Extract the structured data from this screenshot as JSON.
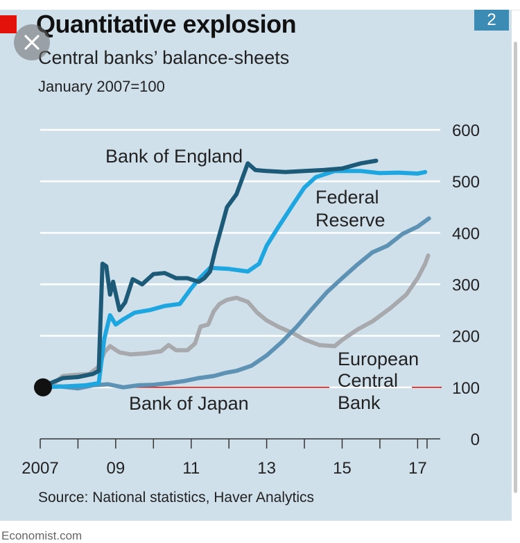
{
  "chart_number": "2",
  "footer": "Economist.com",
  "icons": {
    "close": "close-icon"
  },
  "colors": {
    "background": "#cfe0eb",
    "bank_of_england": "#1c5a78",
    "federal_reserve": "#1ea6e0",
    "european_central_bank": "#5d92b4",
    "bank_of_japan": "#a7a9ac",
    "baseline": "#e3120b",
    "gridline": "#ffffff",
    "brand_red": "#e3120b"
  },
  "chart_data": {
    "type": "line",
    "title": "Quantitative explosion",
    "subtitle": "Central banks’ balance-sheets",
    "unit_label": "January 2007=100",
    "source": "Source: National statistics, Haver Analytics",
    "xlim": [
      2007,
      2017.6
    ],
    "ylim": [
      0,
      600
    ],
    "y_ticks": [
      0,
      100,
      200,
      300,
      400,
      500,
      600
    ],
    "y_tick_labels": [
      "0",
      "100",
      "200",
      "300",
      "400",
      "500",
      "600"
    ],
    "x_tick_labels": [
      {
        "x": 2007,
        "label": "2007"
      },
      {
        "x": 2009,
        "label": "09"
      },
      {
        "x": 2011,
        "label": "11"
      },
      {
        "x": 2013,
        "label": "13"
      },
      {
        "x": 2015,
        "label": "15"
      },
      {
        "x": 2017,
        "label": "17"
      }
    ],
    "x_minor_ticks": [
      2007,
      2008,
      2009,
      2010,
      2011,
      2012,
      2013,
      2014,
      2015,
      2016,
      2017,
      2017.25
    ],
    "gridlines": true,
    "start_marker": {
      "x": 2007.0,
      "y": 100
    },
    "series": [
      {
        "name": "Bank of Japan",
        "color": "#a7a9ac",
        "points": [
          [
            2007.0,
            100
          ],
          [
            2007.4,
            110
          ],
          [
            2007.6,
            122
          ],
          [
            2007.9,
            124
          ],
          [
            2008.3,
            126
          ],
          [
            2008.55,
            140
          ],
          [
            2008.7,
            168
          ],
          [
            2008.85,
            180
          ],
          [
            2009.1,
            168
          ],
          [
            2009.4,
            164
          ],
          [
            2009.8,
            166
          ],
          [
            2010.2,
            170
          ],
          [
            2010.4,
            182
          ],
          [
            2010.6,
            172
          ],
          [
            2010.9,
            172
          ],
          [
            2011.1,
            185
          ],
          [
            2011.25,
            218
          ],
          [
            2011.45,
            222
          ],
          [
            2011.6,
            248
          ],
          [
            2011.75,
            262
          ],
          [
            2011.95,
            270
          ],
          [
            2012.2,
            274
          ],
          [
            2012.5,
            266
          ],
          [
            2012.75,
            245
          ],
          [
            2013.0,
            230
          ],
          [
            2013.3,
            218
          ],
          [
            2013.7,
            205
          ],
          [
            2014.0,
            193
          ],
          [
            2014.4,
            182
          ],
          [
            2014.8,
            180
          ],
          [
            2015.0,
            192
          ],
          [
            2015.4,
            212
          ],
          [
            2015.8,
            228
          ],
          [
            2016.3,
            255
          ],
          [
            2016.7,
            280
          ],
          [
            2017.0,
            312
          ],
          [
            2017.2,
            340
          ],
          [
            2017.28,
            356
          ]
        ]
      },
      {
        "name": "Bank of England",
        "color": "#1c5a78",
        "labels": [
          "Bank of England"
        ],
        "points": [
          [
            2007.0,
            100
          ],
          [
            2007.6,
            118
          ],
          [
            2008.0,
            120
          ],
          [
            2008.4,
            126
          ],
          [
            2008.55,
            132
          ],
          [
            2008.65,
            340
          ],
          [
            2008.75,
            335
          ],
          [
            2008.85,
            280
          ],
          [
            2008.93,
            305
          ],
          [
            2009.1,
            250
          ],
          [
            2009.25,
            265
          ],
          [
            2009.45,
            310
          ],
          [
            2009.7,
            300
          ],
          [
            2010.0,
            320
          ],
          [
            2010.3,
            322
          ],
          [
            2010.6,
            312
          ],
          [
            2010.9,
            312
          ],
          [
            2011.2,
            305
          ],
          [
            2011.35,
            312
          ],
          [
            2011.5,
            325
          ],
          [
            2011.65,
            370
          ],
          [
            2011.8,
            410
          ],
          [
            2011.95,
            450
          ],
          [
            2012.2,
            475
          ],
          [
            2012.35,
            505
          ],
          [
            2012.5,
            535
          ],
          [
            2012.7,
            522
          ],
          [
            2013.0,
            520
          ],
          [
            2013.5,
            518
          ],
          [
            2014.0,
            520
          ],
          [
            2014.5,
            522
          ],
          [
            2015.0,
            525
          ],
          [
            2015.5,
            535
          ],
          [
            2015.9,
            540
          ]
        ]
      },
      {
        "name": "Federal Reserve",
        "color": "#1ea6e0",
        "labels": [
          "Federal",
          "Reserve"
        ],
        "points": [
          [
            2007.0,
            100
          ],
          [
            2007.7,
            102
          ],
          [
            2008.2,
            104
          ],
          [
            2008.55,
            108
          ],
          [
            2008.7,
            195
          ],
          [
            2008.85,
            240
          ],
          [
            2009.0,
            222
          ],
          [
            2009.2,
            232
          ],
          [
            2009.5,
            245
          ],
          [
            2009.9,
            250
          ],
          [
            2010.3,
            258
          ],
          [
            2010.7,
            262
          ],
          [
            2011.0,
            292
          ],
          [
            2011.2,
            310
          ],
          [
            2011.5,
            332
          ],
          [
            2012.0,
            330
          ],
          [
            2012.5,
            325
          ],
          [
            2012.8,
            340
          ],
          [
            2013.0,
            375
          ],
          [
            2013.3,
            410
          ],
          [
            2013.7,
            455
          ],
          [
            2014.0,
            488
          ],
          [
            2014.3,
            508
          ],
          [
            2014.8,
            520
          ],
          [
            2015.5,
            520
          ],
          [
            2016.0,
            516
          ],
          [
            2016.5,
            517
          ],
          [
            2017.0,
            515
          ],
          [
            2017.2,
            518
          ]
        ]
      },
      {
        "name": "European Central Bank",
        "color": "#5d92b4",
        "labels": [
          "European",
          "Central",
          "Bank"
        ],
        "points": [
          [
            2007.0,
            100
          ],
          [
            2007.5,
            102
          ],
          [
            2008.0,
            98
          ],
          [
            2008.4,
            104
          ],
          [
            2008.8,
            106
          ],
          [
            2009.2,
            100
          ],
          [
            2009.6,
            104
          ],
          [
            2010.0,
            105
          ],
          [
            2010.4,
            108
          ],
          [
            2010.8,
            112
          ],
          [
            2011.2,
            118
          ],
          [
            2011.6,
            122
          ],
          [
            2011.9,
            128
          ],
          [
            2012.2,
            132
          ],
          [
            2012.6,
            142
          ],
          [
            2013.0,
            162
          ],
          [
            2013.4,
            188
          ],
          [
            2013.8,
            218
          ],
          [
            2014.2,
            252
          ],
          [
            2014.6,
            285
          ],
          [
            2015.0,
            312
          ],
          [
            2015.4,
            338
          ],
          [
            2015.8,
            362
          ],
          [
            2016.2,
            375
          ],
          [
            2016.6,
            398
          ],
          [
            2017.0,
            412
          ],
          [
            2017.3,
            428
          ]
        ]
      }
    ],
    "baseline": {
      "name": "Bank of Japan",
      "y": 100,
      "x_range": [
        2007.0,
        2017.0
      ]
    }
  }
}
